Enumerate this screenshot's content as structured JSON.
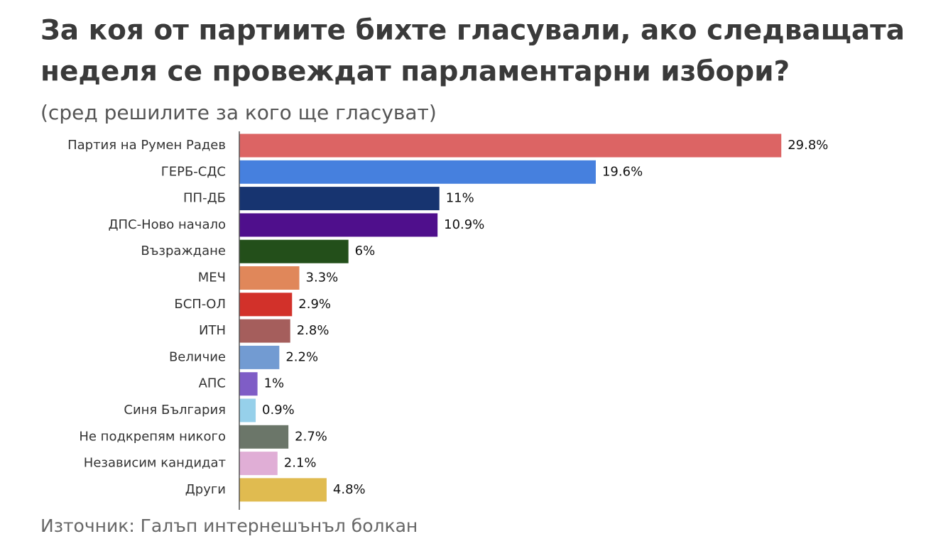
{
  "chart_data": {
    "type": "bar",
    "orientation": "horizontal",
    "title": "За коя от партиите бихте гласували, ако следващата неделя се провеждат парламентарни избори?",
    "title_lines": [
      "За коя от партиите бихте гласували, ако следващата",
      "неделя се провеждат парламентарни избори?"
    ],
    "subtitle": "(сред решилите за кого ще гласуват)",
    "source": "Източник: Галъп интернешънъл болкан",
    "categories": [
      "Партия на Румен Радев",
      "ГЕРБ-СДС",
      "ПП-ДБ",
      "ДПС-Ново начало",
      "Възраждане",
      "МЕЧ",
      "БСП-ОЛ",
      "ИТН",
      "Величие",
      "АПС",
      "Синя България",
      "Не подкрепям никого",
      "Независим кандидат",
      "Други"
    ],
    "values": [
      29.8,
      19.6,
      11,
      10.9,
      6,
      3.3,
      2.9,
      2.8,
      2.2,
      1,
      0.9,
      2.7,
      2.1,
      4.8
    ],
    "value_labels": [
      "29.8%",
      "19.6%",
      "11%",
      "10.9%",
      "6%",
      "3.3%",
      "2.9%",
      "2.8%",
      "2.2%",
      "1%",
      "0.9%",
      "2.7%",
      "2.1%",
      "4.8%"
    ],
    "colors": [
      "#dc6464",
      "#4680de",
      "#173470",
      "#4f0f8c",
      "#234f1a",
      "#e0875a",
      "#d2312a",
      "#a55e5c",
      "#729bd2",
      "#7f5dc6",
      "#96d0ea",
      "#6b7669",
      "#e0aed6",
      "#e0bb50"
    ],
    "xlim": [
      0,
      37.6
    ]
  }
}
